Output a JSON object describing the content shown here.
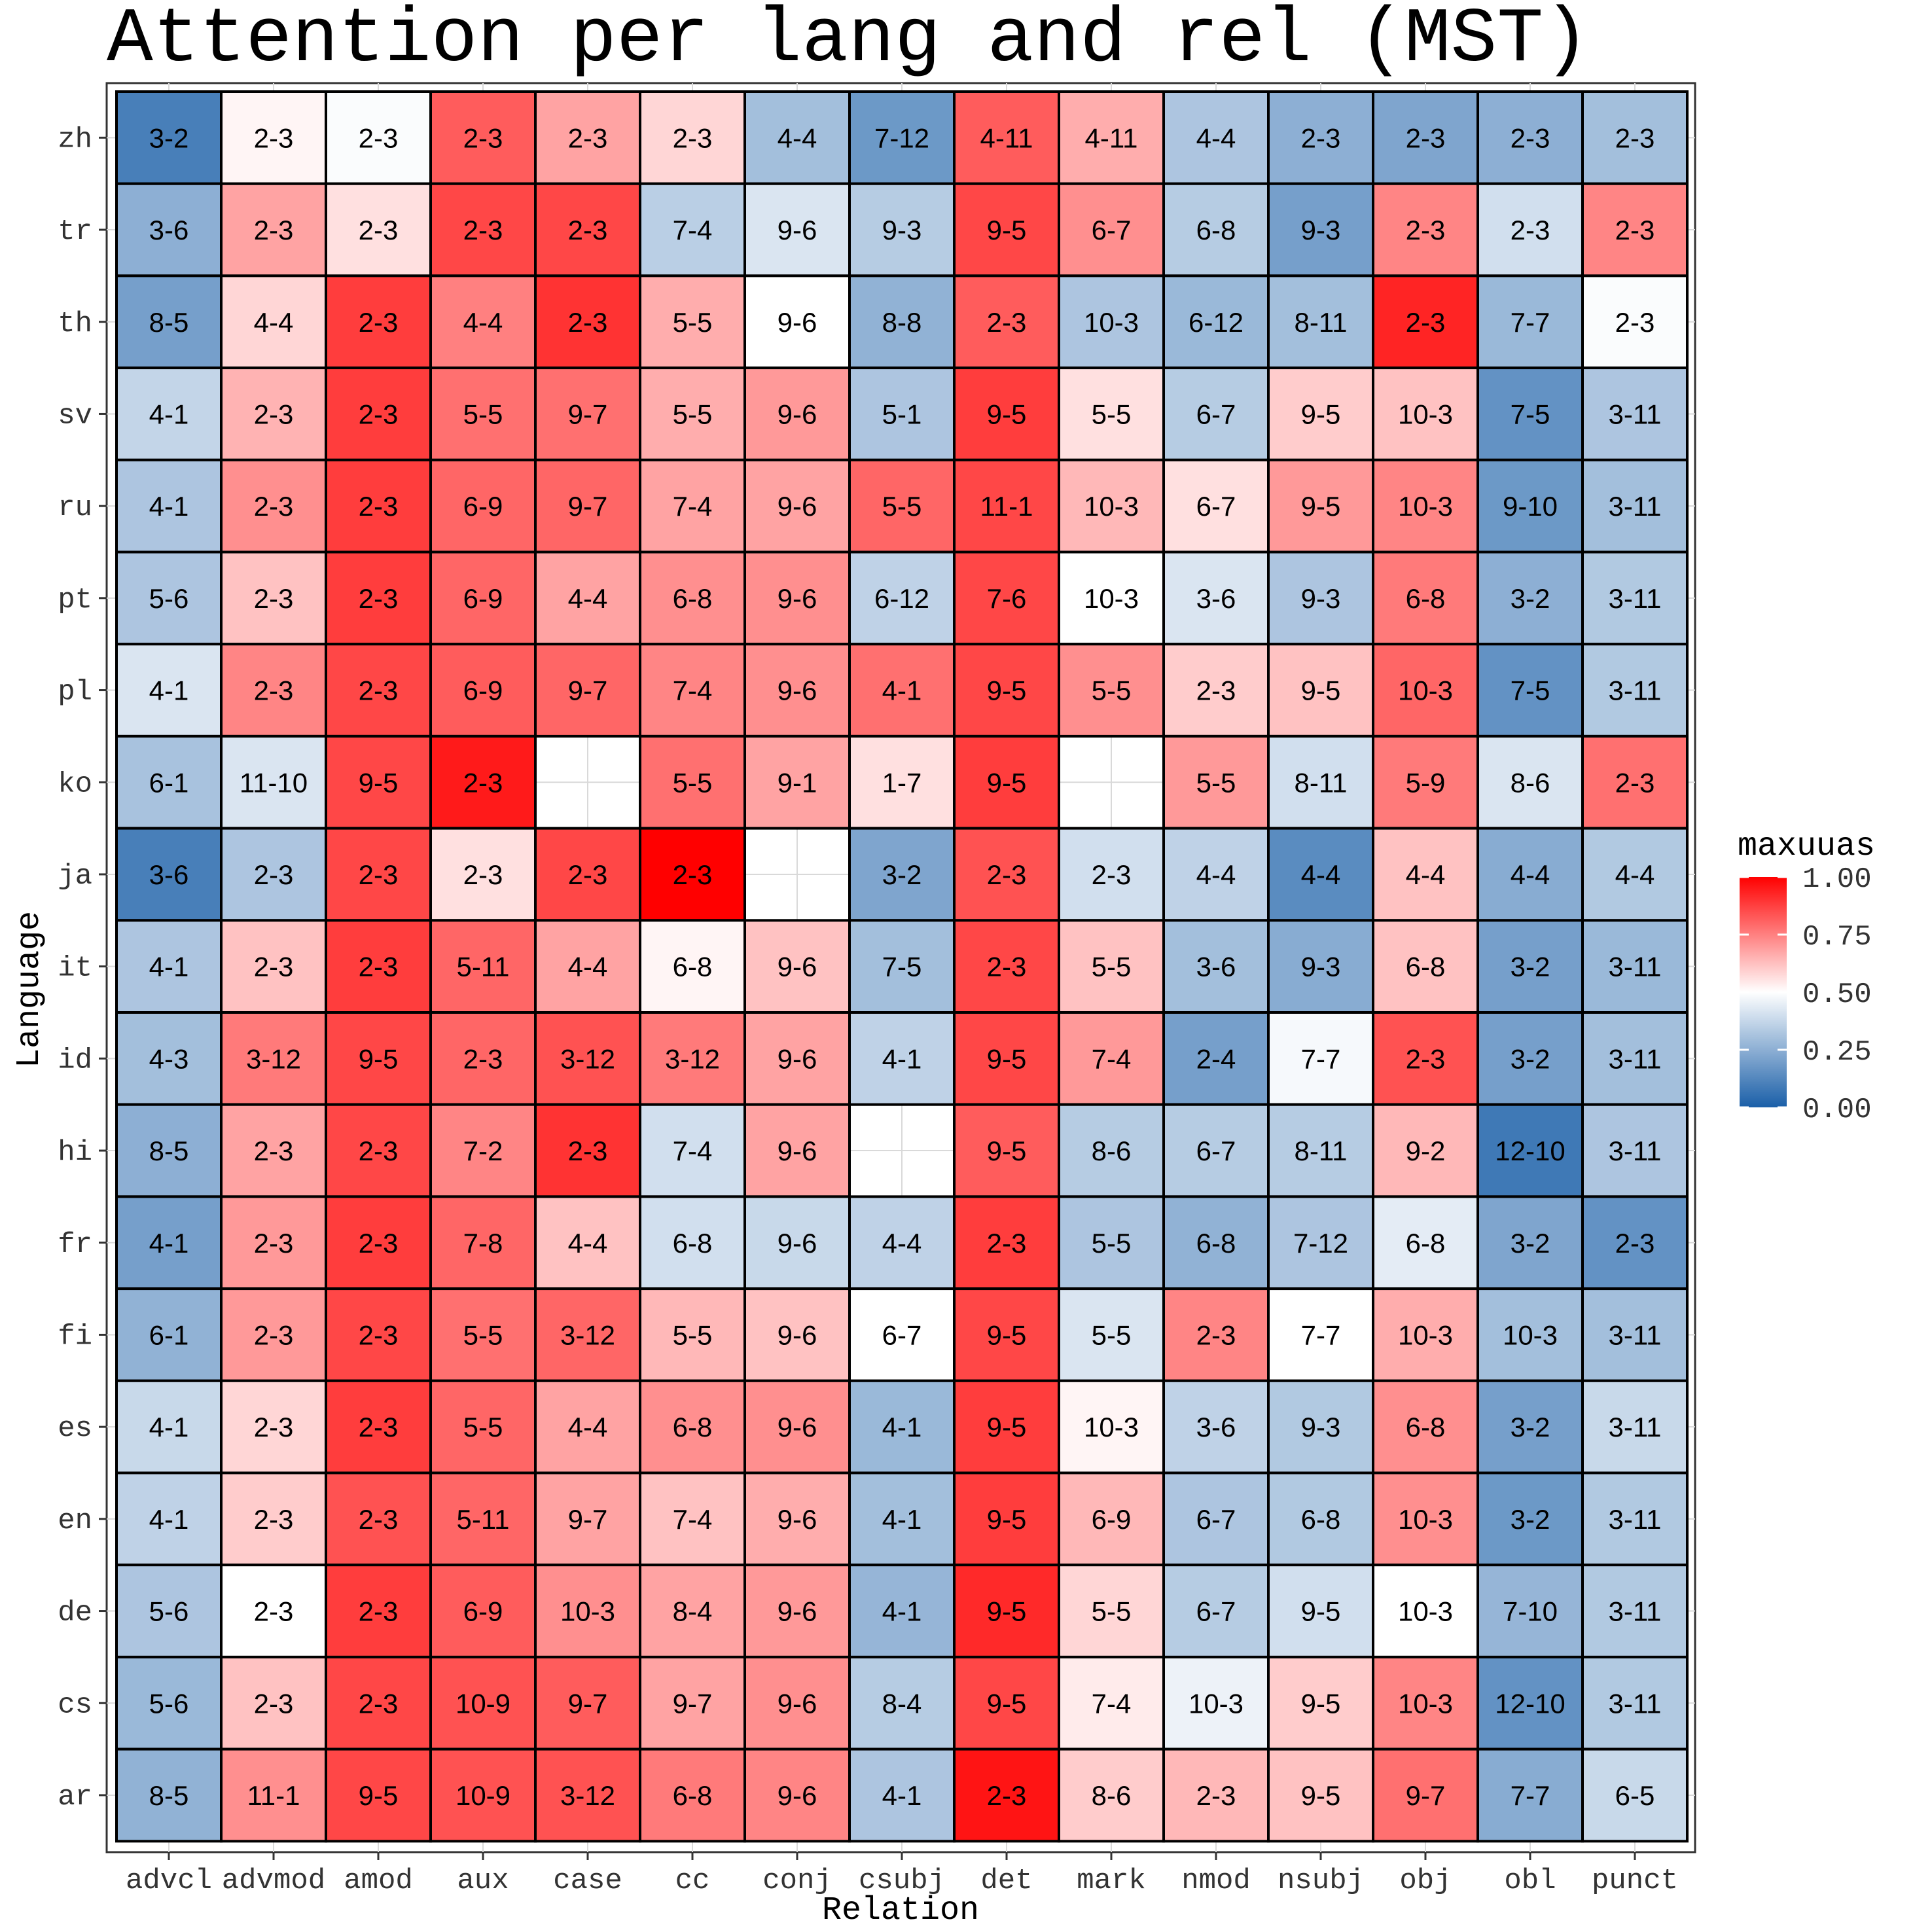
{
  "chart_data": {
    "type": "heatmap",
    "title": "Attention per lang and rel (MST)",
    "xlabel": "Relation",
    "ylabel": "Language",
    "legend": {
      "title": "maxuuas",
      "placement": "right",
      "ticks": [
        "1.00",
        "0.75",
        "0.50",
        "0.25",
        "0.00"
      ],
      "tick_values": [
        1.0,
        0.75,
        0.5,
        0.25,
        0.0
      ]
    },
    "color_scale": {
      "low": "#1a5fa8",
      "mid": "#ffffff",
      "high": "#ff0000",
      "midpoint": 0.5,
      "min": 0.0,
      "max": 1.0
    },
    "colors": {
      "grid": "#d9d9d9",
      "cell_border": "#000000",
      "panel_border": "#333333"
    },
    "x_categories": [
      "advcl",
      "advmod",
      "amod",
      "aux",
      "case",
      "cc",
      "conj",
      "csubj",
      "det",
      "mark",
      "nmod",
      "nsubj",
      "obj",
      "obl",
      "punct"
    ],
    "y_categories": [
      "zh",
      "tr",
      "th",
      "sv",
      "ru",
      "pt",
      "pl",
      "ko",
      "ja",
      "it",
      "id",
      "hi",
      "fr",
      "fi",
      "es",
      "en",
      "de",
      "cs",
      "ar"
    ],
    "labels": [
      [
        "3-2",
        "2-3",
        "2-3",
        "2-3",
        "2-3",
        "2-3",
        "4-4",
        "7-12",
        "4-11",
        "4-11",
        "4-4",
        "2-3",
        "2-3",
        "2-3",
        "2-3"
      ],
      [
        "3-6",
        "2-3",
        "2-3",
        "2-3",
        "2-3",
        "7-4",
        "9-6",
        "9-3",
        "9-5",
        "6-7",
        "6-8",
        "9-3",
        "2-3",
        "2-3",
        "2-3"
      ],
      [
        "8-5",
        "4-4",
        "2-3",
        "4-4",
        "2-3",
        "5-5",
        "9-6",
        "8-8",
        "2-3",
        "10-3",
        "6-12",
        "8-11",
        "2-3",
        "7-7",
        "2-3"
      ],
      [
        "4-1",
        "2-3",
        "2-3",
        "5-5",
        "9-7",
        "5-5",
        "9-6",
        "5-1",
        "9-5",
        "5-5",
        "6-7",
        "9-5",
        "10-3",
        "7-5",
        "3-11"
      ],
      [
        "4-1",
        "2-3",
        "2-3",
        "6-9",
        "9-7",
        "7-4",
        "9-6",
        "5-5",
        "11-1",
        "10-3",
        "6-7",
        "9-5",
        "10-3",
        "9-10",
        "3-11"
      ],
      [
        "5-6",
        "2-3",
        "2-3",
        "6-9",
        "4-4",
        "6-8",
        "9-6",
        "6-12",
        "7-6",
        "10-3",
        "3-6",
        "9-3",
        "6-8",
        "3-2",
        "3-11"
      ],
      [
        "4-1",
        "2-3",
        "2-3",
        "6-9",
        "9-7",
        "7-4",
        "9-6",
        "4-1",
        "9-5",
        "5-5",
        "2-3",
        "9-5",
        "10-3",
        "7-5",
        "3-11"
      ],
      [
        "6-1",
        "11-10",
        "9-5",
        "2-3",
        null,
        "5-5",
        "9-1",
        "1-7",
        "9-5",
        null,
        "5-5",
        "8-11",
        "5-9",
        "8-6",
        "2-3"
      ],
      [
        "3-6",
        "2-3",
        "2-3",
        "2-3",
        "2-3",
        "2-3",
        null,
        "3-2",
        "2-3",
        "2-3",
        "4-4",
        "4-4",
        "4-4",
        "4-4",
        "4-4"
      ],
      [
        "4-1",
        "2-3",
        "2-3",
        "5-11",
        "4-4",
        "6-8",
        "9-6",
        "7-5",
        "2-3",
        "5-5",
        "3-6",
        "9-3",
        "6-8",
        "3-2",
        "3-11"
      ],
      [
        "4-3",
        "3-12",
        "9-5",
        "2-3",
        "3-12",
        "3-12",
        "9-6",
        "4-1",
        "9-5",
        "7-4",
        "2-4",
        "7-7",
        "2-3",
        "3-2",
        "3-11"
      ],
      [
        "8-5",
        "2-3",
        "2-3",
        "7-2",
        "2-3",
        "7-4",
        "9-6",
        null,
        "9-5",
        "8-6",
        "6-7",
        "8-11",
        "9-2",
        "12-10",
        "3-11"
      ],
      [
        "4-1",
        "2-3",
        "2-3",
        "7-8",
        "4-4",
        "6-8",
        "9-6",
        "4-4",
        "2-3",
        "5-5",
        "6-8",
        "7-12",
        "6-8",
        "3-2",
        "2-3"
      ],
      [
        "6-1",
        "2-3",
        "2-3",
        "5-5",
        "3-12",
        "5-5",
        "9-6",
        "6-7",
        "9-5",
        "5-5",
        "2-3",
        "7-7",
        "10-3",
        "10-3",
        "3-11"
      ],
      [
        "4-1",
        "2-3",
        "2-3",
        "5-5",
        "4-4",
        "6-8",
        "9-6",
        "4-1",
        "9-5",
        "10-3",
        "3-6",
        "9-3",
        "6-8",
        "3-2",
        "3-11"
      ],
      [
        "4-1",
        "2-3",
        "2-3",
        "5-11",
        "9-7",
        "7-4",
        "9-6",
        "4-1",
        "9-5",
        "6-9",
        "6-7",
        "6-8",
        "10-3",
        "3-2",
        "3-11"
      ],
      [
        "5-6",
        "2-3",
        "2-3",
        "6-9",
        "10-3",
        "8-4",
        "9-6",
        "4-1",
        "9-5",
        "5-5",
        "6-7",
        "9-5",
        "10-3",
        "7-10",
        "3-11"
      ],
      [
        "5-6",
        "2-3",
        "2-3",
        "10-9",
        "9-7",
        "9-7",
        "9-6",
        "8-4",
        "9-5",
        "7-4",
        "10-3",
        "9-5",
        "10-3",
        "12-10",
        "3-11"
      ],
      [
        "8-5",
        "11-1",
        "9-5",
        "10-9",
        "3-12",
        "6-8",
        "9-6",
        "4-1",
        "2-3",
        "8-6",
        "2-3",
        "9-5",
        "9-7",
        "7-7",
        "6-5"
      ]
    ],
    "values": [
      [
        0.1,
        0.52,
        0.49,
        0.82,
        0.68,
        0.58,
        0.3,
        0.18,
        0.82,
        0.66,
        0.32,
        0.25,
        0.22,
        0.25,
        0.3
      ],
      [
        0.25,
        0.68,
        0.56,
        0.86,
        0.86,
        0.35,
        0.42,
        0.34,
        0.86,
        0.72,
        0.34,
        0.2,
        0.74,
        0.4,
        0.74
      ],
      [
        0.2,
        0.58,
        0.88,
        0.75,
        0.9,
        0.66,
        0.5,
        0.26,
        0.82,
        0.32,
        0.28,
        0.3,
        0.93,
        0.28,
        0.49
      ],
      [
        0.37,
        0.65,
        0.88,
        0.78,
        0.78,
        0.66,
        0.7,
        0.32,
        0.88,
        0.56,
        0.34,
        0.6,
        0.62,
        0.16,
        0.32
      ],
      [
        0.32,
        0.72,
        0.88,
        0.8,
        0.8,
        0.68,
        0.68,
        0.8,
        0.86,
        0.64,
        0.56,
        0.7,
        0.74,
        0.18,
        0.3
      ],
      [
        0.32,
        0.62,
        0.88,
        0.8,
        0.68,
        0.72,
        0.72,
        0.36,
        0.86,
        0.5,
        0.42,
        0.32,
        0.76,
        0.25,
        0.33
      ],
      [
        0.42,
        0.74,
        0.86,
        0.82,
        0.8,
        0.74,
        0.72,
        0.78,
        0.86,
        0.72,
        0.6,
        0.62,
        0.8,
        0.16,
        0.33
      ],
      [
        0.31,
        0.42,
        0.86,
        0.95,
        null,
        0.78,
        0.68,
        0.56,
        0.88,
        null,
        0.7,
        0.4,
        0.76,
        0.42,
        0.78
      ],
      [
        0.1,
        0.32,
        0.86,
        0.56,
        0.86,
        1.0,
        null,
        0.22,
        0.84,
        0.4,
        0.36,
        0.14,
        0.62,
        0.24,
        0.33
      ],
      [
        0.32,
        0.62,
        0.88,
        0.8,
        0.68,
        0.52,
        0.62,
        0.3,
        0.86,
        0.62,
        0.3,
        0.24,
        0.62,
        0.2,
        0.28
      ],
      [
        0.3,
        0.76,
        0.86,
        0.8,
        0.84,
        0.76,
        0.68,
        0.36,
        0.86,
        0.7,
        0.2,
        0.48,
        0.84,
        0.2,
        0.3
      ],
      [
        0.25,
        0.68,
        0.86,
        0.74,
        0.9,
        0.4,
        0.68,
        null,
        0.82,
        0.34,
        0.34,
        0.34,
        0.64,
        0.08,
        0.32
      ],
      [
        0.2,
        0.7,
        0.88,
        0.8,
        0.62,
        0.4,
        0.38,
        0.36,
        0.88,
        0.32,
        0.26,
        0.32,
        0.44,
        0.22,
        0.16
      ],
      [
        0.26,
        0.7,
        0.86,
        0.78,
        0.8,
        0.64,
        0.62,
        0.5,
        0.86,
        0.42,
        0.74,
        0.5,
        0.66,
        0.3,
        0.3
      ],
      [
        0.38,
        0.58,
        0.88,
        0.8,
        0.68,
        0.72,
        0.72,
        0.28,
        0.88,
        0.52,
        0.36,
        0.33,
        0.72,
        0.2,
        0.38
      ],
      [
        0.36,
        0.6,
        0.84,
        0.8,
        0.68,
        0.62,
        0.66,
        0.3,
        0.88,
        0.64,
        0.32,
        0.33,
        0.72,
        0.18,
        0.33
      ],
      [
        0.32,
        0.5,
        0.88,
        0.82,
        0.72,
        0.68,
        0.7,
        0.27,
        0.92,
        0.58,
        0.34,
        0.4,
        0.5,
        0.27,
        0.33
      ],
      [
        0.28,
        0.62,
        0.86,
        0.84,
        0.82,
        0.68,
        0.72,
        0.34,
        0.86,
        0.54,
        0.46,
        0.6,
        0.74,
        0.16,
        0.33
      ],
      [
        0.26,
        0.72,
        0.86,
        0.84,
        0.84,
        0.76,
        0.74,
        0.32,
        0.96,
        0.6,
        0.64,
        0.62,
        0.78,
        0.24,
        0.38
      ]
    ]
  }
}
